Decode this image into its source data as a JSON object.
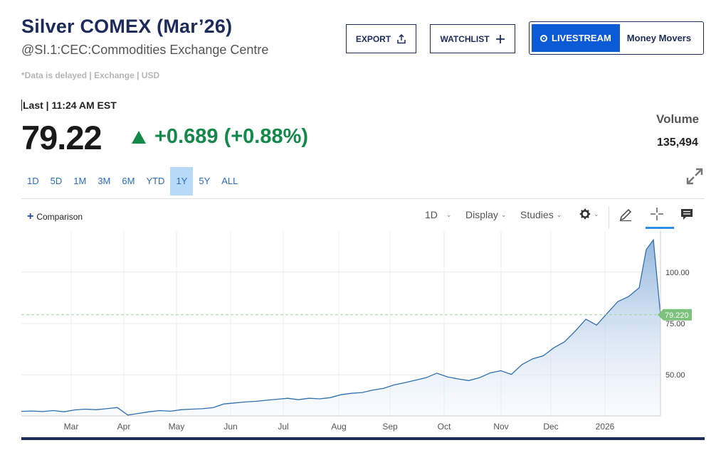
{
  "header": {
    "title": "Silver COMEX (Mar’26)",
    "subtitle": "@SI.1:CEC:Commodities Exchange Centre",
    "delayed_note": "*Data is delayed | Exchange | USD"
  },
  "actions": {
    "export_label": "EXPORT",
    "watchlist_label": "WATCHLIST",
    "livestream_label": "LIVESTREAM",
    "money_movers_label": "Money Movers"
  },
  "quote": {
    "last_line": "Last | 11:24 AM EST",
    "price": "79.22",
    "change": "+0.689 (+0.88%)",
    "volume_label": "Volume",
    "volume_value": "135,494"
  },
  "ranges": [
    {
      "label": "1D",
      "active": false
    },
    {
      "label": "5D",
      "active": false
    },
    {
      "label": "1M",
      "active": false
    },
    {
      "label": "3M",
      "active": false
    },
    {
      "label": "6M",
      "active": false
    },
    {
      "label": "YTD",
      "active": false
    },
    {
      "label": "1Y",
      "active": true
    },
    {
      "label": "5Y",
      "active": false
    },
    {
      "label": "ALL",
      "active": false
    }
  ],
  "toolbar": {
    "comparison_label": "Comparison",
    "interval_label": "1D",
    "display_label": "Display",
    "studies_label": "Studies",
    "icons": [
      "gear-icon",
      "pencil-icon",
      "crosshair-icon",
      "comment-icon"
    ]
  },
  "colors": {
    "accent": "#1c2b5a",
    "positive": "#138a4a",
    "line": "#2f6fb0",
    "price_tag": "#7dc27a",
    "active_range": "#b6daf7"
  },
  "chart_data": {
    "type": "area",
    "x_labels": [
      "Mar",
      "Apr",
      "May",
      "Jun",
      "Jul",
      "Aug",
      "Sep",
      "Oct",
      "Nov",
      "Dec",
      "2026"
    ],
    "y_ticks": [
      "50.00",
      "75.00",
      "100.00"
    ],
    "ylim": [
      30,
      120
    ],
    "current_price_tag": "79.220",
    "grid": true,
    "x": [
      0,
      6,
      12,
      18,
      24,
      30,
      36,
      42,
      48,
      54,
      60,
      66,
      72,
      78,
      84,
      90,
      96,
      102,
      108,
      114,
      120,
      126,
      132,
      138,
      144,
      150,
      156,
      162,
      168,
      174,
      180,
      186,
      192,
      198,
      204,
      210,
      216,
      222,
      228,
      234,
      240,
      246,
      252,
      258,
      264,
      270,
      276,
      282,
      288,
      294,
      300,
      306,
      312,
      318,
      324,
      330,
      336,
      342,
      348,
      352,
      356,
      360
    ],
    "values": [
      32.2,
      32.4,
      32.1,
      32.6,
      32.0,
      32.9,
      33.3,
      33.0,
      33.5,
      34.1,
      30.4,
      31.2,
      32.0,
      32.6,
      32.3,
      33.0,
      33.3,
      33.5,
      34.0,
      35.8,
      36.3,
      36.8,
      37.1,
      37.6,
      38.1,
      38.6,
      37.9,
      38.6,
      38.3,
      38.9,
      40.3,
      41.0,
      41.4,
      42.6,
      43.4,
      45.1,
      46.2,
      47.4,
      48.6,
      50.8,
      49.0,
      48.0,
      47.2,
      48.6,
      50.9,
      52.0,
      50.2,
      55.0,
      57.8,
      59.3,
      63.2,
      66.1,
      71.3,
      77.1,
      74.2,
      80.0,
      85.7,
      88.1,
      92.4,
      111.0,
      115.7,
      79.22
    ],
    "x_range": [
      0,
      360
    ]
  }
}
